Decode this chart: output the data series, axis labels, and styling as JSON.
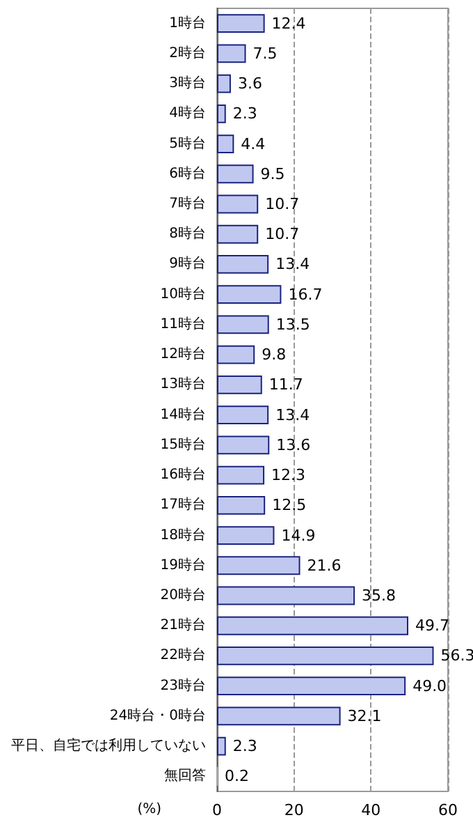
{
  "chart_data": {
    "type": "bar",
    "orientation": "horizontal",
    "xlabel": "(%)",
    "categories": [
      "1時台",
      "2時台",
      "3時台",
      "4時台",
      "5時台",
      "6時台",
      "7時台",
      "8時台",
      "9時台",
      "10時台",
      "11時台",
      "12時台",
      "13時台",
      "14時台",
      "15時台",
      "16時台",
      "17時台",
      "18時台",
      "19時台",
      "20時台",
      "21時台",
      "22時台",
      "23時台",
      "24時台・0時台",
      "平日、自宅では利用していない",
      "無回答"
    ],
    "values": [
      12.4,
      7.5,
      3.6,
      2.3,
      4.4,
      9.5,
      10.7,
      10.7,
      13.4,
      16.7,
      13.5,
      9.8,
      11.7,
      13.4,
      13.6,
      12.3,
      12.5,
      14.9,
      21.6,
      35.8,
      49.7,
      56.3,
      49.0,
      32.1,
      2.3,
      0.2
    ],
    "value_labels": [
      "12.4",
      "7.5",
      "3.6",
      "2.3",
      "4.4",
      "9.5",
      "10.7",
      "10.7",
      "13.4",
      "16.7",
      "13.5",
      "9.8",
      "11.7",
      "13.4",
      "13.6",
      "12.3",
      "12.5",
      "14.9",
      "21.6",
      "35.8",
      "49.7",
      "56.3",
      "49.0",
      "32.1",
      "2.3",
      "0.2"
    ],
    "color": "#c0c8f0",
    "xlim": [
      0,
      60
    ],
    "xticks": [
      0,
      20,
      40,
      60
    ],
    "grid": "x"
  }
}
